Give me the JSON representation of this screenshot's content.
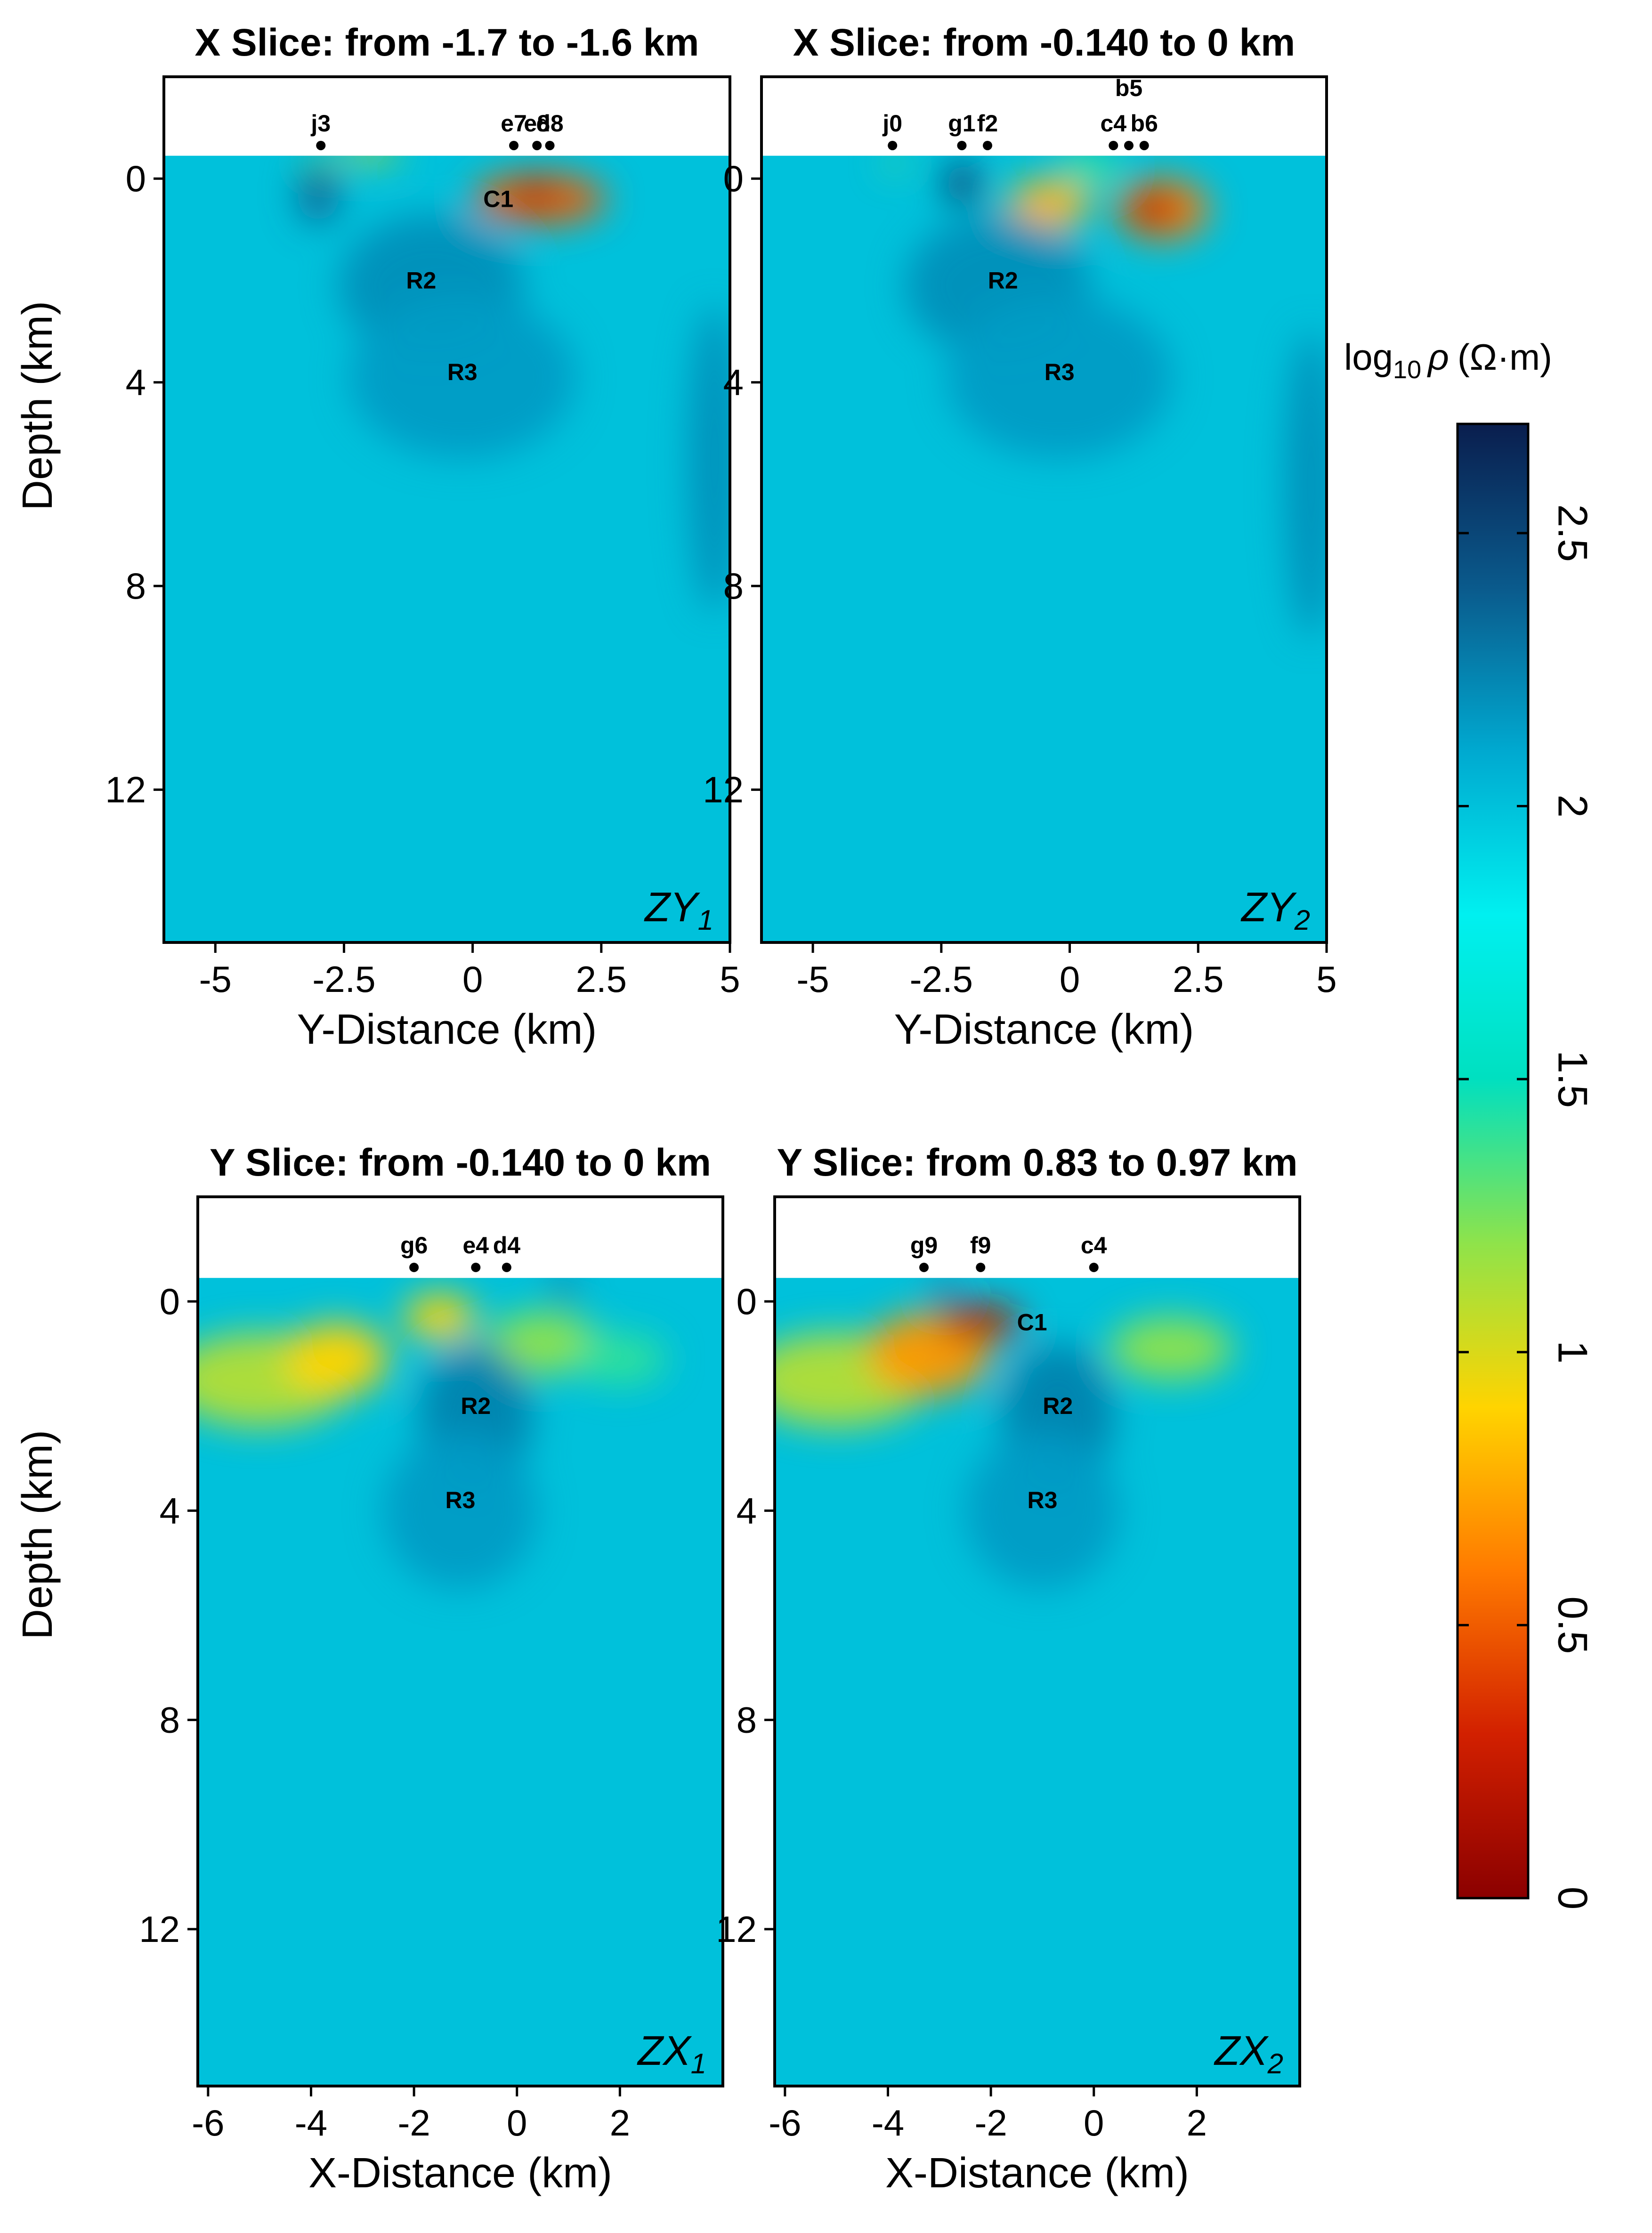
{
  "figure": {
    "colorbar": {
      "title_prefix": "log",
      "title_sub": "10",
      "title_symbol": "ρ",
      "title_unit": "(Ω·m)",
      "ticks": [
        "0",
        "0.5",
        "1",
        "1.5",
        "2",
        "2.5"
      ],
      "range": [
        0,
        2.7
      ],
      "colors": [
        "#8b0000",
        "#d22000",
        "#ff7a00",
        "#ffd400",
        "#8fe34a",
        "#00e0c0",
        "#00f0f0",
        "#00a9d0",
        "#0a5a8c",
        "#0a1e4e"
      ]
    }
  },
  "chart_data": [
    {
      "type": "heatmap",
      "panel": "ZY1",
      "title": "X Slice: from -1.7 to -1.6 km",
      "xlabel": "Y-Distance (km)",
      "ylabel": "Depth (km)",
      "xlim": [
        -6,
        5
      ],
      "ylim": [
        -2,
        15
      ],
      "xticks": [
        "-5",
        "-2.5",
        "0",
        "2.5",
        "5"
      ],
      "xtick_values": [
        -5,
        -2.5,
        0,
        2.5,
        5
      ],
      "yticks": [
        "0",
        "4",
        "8",
        "12"
      ],
      "ytick_values": [
        0,
        4,
        8,
        12
      ],
      "label": "ZY",
      "label_sub": "1",
      "background_log10_rho": 2.0,
      "stations": [
        {
          "name": "j3",
          "x": -2.95
        },
        {
          "name": "e7",
          "x": 0.8
        },
        {
          "name": "e8",
          "x": 1.25
        },
        {
          "name": "d8",
          "x": 1.5
        }
      ],
      "features": [
        {
          "name": "C1",
          "x": 0.5,
          "depth": 0.4
        },
        {
          "name": "R2",
          "x": -1.0,
          "depth": 2.0
        },
        {
          "name": "R3",
          "x": -0.2,
          "depth": 3.8
        }
      ],
      "anomalies": [
        {
          "x": 1.3,
          "depth": 0.4,
          "rx": 1.3,
          "ry": 0.5,
          "log10_rho": 0.5
        },
        {
          "x": 1.2,
          "depth": 0.3,
          "rx": 0.35,
          "ry": 0.25,
          "log10_rho": 0.1
        },
        {
          "x": -2.0,
          "depth": -0.5,
          "rx": 0.6,
          "ry": 0.15,
          "log10_rho": 1.0
        },
        {
          "x": -3.0,
          "depth": -0.2,
          "rx": 0.3,
          "ry": 0.3,
          "log10_rho": 1.3
        },
        {
          "x": -3.0,
          "depth": 0.3,
          "rx": 0.4,
          "ry": 0.6,
          "log10_rho": 2.35
        },
        {
          "x": -0.8,
          "depth": 2.1,
          "rx": 1.8,
          "ry": 1.4,
          "log10_rho": 2.2
        },
        {
          "x": -0.2,
          "depth": 3.9,
          "rx": 2.2,
          "ry": 1.6,
          "log10_rho": 2.15
        },
        {
          "x": 4.7,
          "depth": 5.5,
          "rx": 0.5,
          "ry": 3.0,
          "log10_rho": 2.2
        }
      ]
    },
    {
      "type": "heatmap",
      "panel": "ZY2",
      "title": "X Slice: from -0.140 to 0 km",
      "xlabel": "Y-Distance (km)",
      "ylabel": "Depth (km)",
      "xlim": [
        -6,
        5
      ],
      "ylim": [
        -2,
        15
      ],
      "xticks": [
        "-5",
        "-2.5",
        "0",
        "2.5",
        "5"
      ],
      "xtick_values": [
        -5,
        -2.5,
        0,
        2.5,
        5
      ],
      "yticks": [
        "0",
        "4",
        "8",
        "12"
      ],
      "ytick_values": [
        0,
        4,
        8,
        12
      ],
      "label": "ZY",
      "label_sub": "2",
      "background_log10_rho": 2.0,
      "stations": [
        {
          "name": "j0",
          "x": -3.45
        },
        {
          "name": "g1",
          "x": -2.1
        },
        {
          "name": "f2",
          "x": -1.6
        },
        {
          "name": "c4",
          "x": 0.85
        },
        {
          "name": "b5",
          "x": 1.15
        },
        {
          "name": "b6",
          "x": 1.45
        }
      ],
      "features": [
        {
          "name": "R2",
          "x": -1.3,
          "depth": 2.0
        },
        {
          "name": "R3",
          "x": -0.2,
          "depth": 3.8
        }
      ],
      "anomalies": [
        {
          "x": -0.4,
          "depth": 0.5,
          "rx": 0.8,
          "ry": 0.5,
          "log10_rho": 0.8
        },
        {
          "x": 1.8,
          "depth": 0.6,
          "rx": 0.9,
          "ry": 0.6,
          "log10_rho": 0.6
        },
        {
          "x": 1.6,
          "depth": 0.6,
          "rx": 0.45,
          "ry": 0.35,
          "log10_rho": 0.15
        },
        {
          "x": 0.4,
          "depth": -0.2,
          "rx": 0.6,
          "ry": 0.3,
          "log10_rho": 1.4
        },
        {
          "x": -2.1,
          "depth": 0.1,
          "rx": 0.35,
          "ry": 0.45,
          "log10_rho": 2.5
        },
        {
          "x": -3.4,
          "depth": -0.3,
          "rx": 0.2,
          "ry": 0.15,
          "log10_rho": 1.3
        },
        {
          "x": -1.4,
          "depth": 2.1,
          "rx": 1.8,
          "ry": 1.4,
          "log10_rho": 2.2
        },
        {
          "x": -0.2,
          "depth": 3.9,
          "rx": 2.2,
          "ry": 1.6,
          "log10_rho": 2.15
        },
        {
          "x": 4.7,
          "depth": 6.0,
          "rx": 0.5,
          "ry": 3.0,
          "log10_rho": 2.2
        }
      ]
    },
    {
      "type": "heatmap",
      "panel": "ZX1",
      "title": "Y Slice: from -0.140 to 0 km",
      "xlabel": "X-Distance (km)",
      "ylabel": "Depth (km)",
      "xlim": [
        -6.2,
        4
      ],
      "ylim": [
        -2,
        15
      ],
      "xticks": [
        "-6",
        "-4",
        "-2",
        "0",
        "2"
      ],
      "xtick_values": [
        -6,
        -4,
        -2,
        0,
        2
      ],
      "yticks": [
        "0",
        "4",
        "8",
        "12"
      ],
      "ytick_values": [
        0,
        4,
        8,
        12
      ],
      "label": "ZX",
      "label_sub": "1",
      "background_log10_rho": 2.0,
      "stations": [
        {
          "name": "g6",
          "x": -2.0
        },
        {
          "name": "e4",
          "x": -0.8
        },
        {
          "name": "d4",
          "x": -0.2
        }
      ],
      "features": [
        {
          "name": "R2",
          "x": -0.8,
          "depth": 2.0
        },
        {
          "name": "R3",
          "x": -1.1,
          "depth": 3.8
        }
      ],
      "anomalies": [
        {
          "x": -5.0,
          "depth": 1.5,
          "rx": 1.8,
          "ry": 0.9,
          "log10_rho": 1.1
        },
        {
          "x": -3.5,
          "depth": 1.1,
          "rx": 1.0,
          "ry": 0.7,
          "log10_rho": 0.9
        },
        {
          "x": -1.5,
          "depth": 0.3,
          "rx": 0.7,
          "ry": 0.45,
          "log10_rho": 0.9
        },
        {
          "x": 0.5,
          "depth": 0.8,
          "rx": 1.1,
          "ry": 0.6,
          "log10_rho": 1.2
        },
        {
          "x": 2.0,
          "depth": 1.1,
          "rx": 0.9,
          "ry": 0.5,
          "log10_rho": 1.4
        },
        {
          "x": -0.8,
          "depth": 2.2,
          "rx": 1.1,
          "ry": 1.4,
          "log10_rho": 2.25
        },
        {
          "x": -1.1,
          "depth": 4.0,
          "rx": 1.5,
          "ry": 1.5,
          "log10_rho": 2.15
        },
        {
          "x": 0.9,
          "depth": -0.25,
          "rx": 0.25,
          "ry": 0.2,
          "log10_rho": 2.4
        }
      ]
    },
    {
      "type": "heatmap",
      "panel": "ZX2",
      "title": "Y Slice: from 0.83 to 0.97 km",
      "xlabel": "X-Distance (km)",
      "ylabel": "Depth (km)",
      "xlim": [
        -6.2,
        4
      ],
      "ylim": [
        -2,
        15
      ],
      "xticks": [
        "-6",
        "-4",
        "-2",
        "0",
        "2"
      ],
      "xtick_values": [
        -6,
        -4,
        -2,
        0,
        2
      ],
      "yticks": [
        "0",
        "4",
        "8",
        "12"
      ],
      "ytick_values": [
        0,
        4,
        8,
        12
      ],
      "label": "ZX",
      "label_sub": "2",
      "background_log10_rho": 2.0,
      "stations": [
        {
          "name": "g9",
          "x": -3.3
        },
        {
          "name": "f9",
          "x": -2.2
        },
        {
          "name": "c4",
          "x": 0.0
        }
      ],
      "features": [
        {
          "name": "C1",
          "x": -1.2,
          "depth": 0.4
        },
        {
          "name": "R2",
          "x": -0.7,
          "depth": 2.0
        },
        {
          "name": "R3",
          "x": -1.0,
          "depth": 3.8
        }
      ],
      "anomalies": [
        {
          "x": -5.0,
          "depth": 1.5,
          "rx": 1.8,
          "ry": 0.9,
          "log10_rho": 1.1
        },
        {
          "x": -3.2,
          "depth": 1.0,
          "rx": 1.2,
          "ry": 0.8,
          "log10_rho": 0.7
        },
        {
          "x": -2.2,
          "depth": 0.4,
          "rx": 0.8,
          "ry": 0.35,
          "log10_rho": 0.2
        },
        {
          "x": 1.5,
          "depth": 0.9,
          "rx": 1.2,
          "ry": 0.6,
          "log10_rho": 1.2
        },
        {
          "x": -0.7,
          "depth": 2.2,
          "rx": 1.1,
          "ry": 1.4,
          "log10_rho": 2.25
        },
        {
          "x": -1.0,
          "depth": 4.0,
          "rx": 1.5,
          "ry": 1.5,
          "log10_rho": 2.15
        },
        {
          "x": -2.9,
          "depth": -0.2,
          "rx": 0.25,
          "ry": 0.2,
          "log10_rho": 2.4
        }
      ]
    }
  ]
}
